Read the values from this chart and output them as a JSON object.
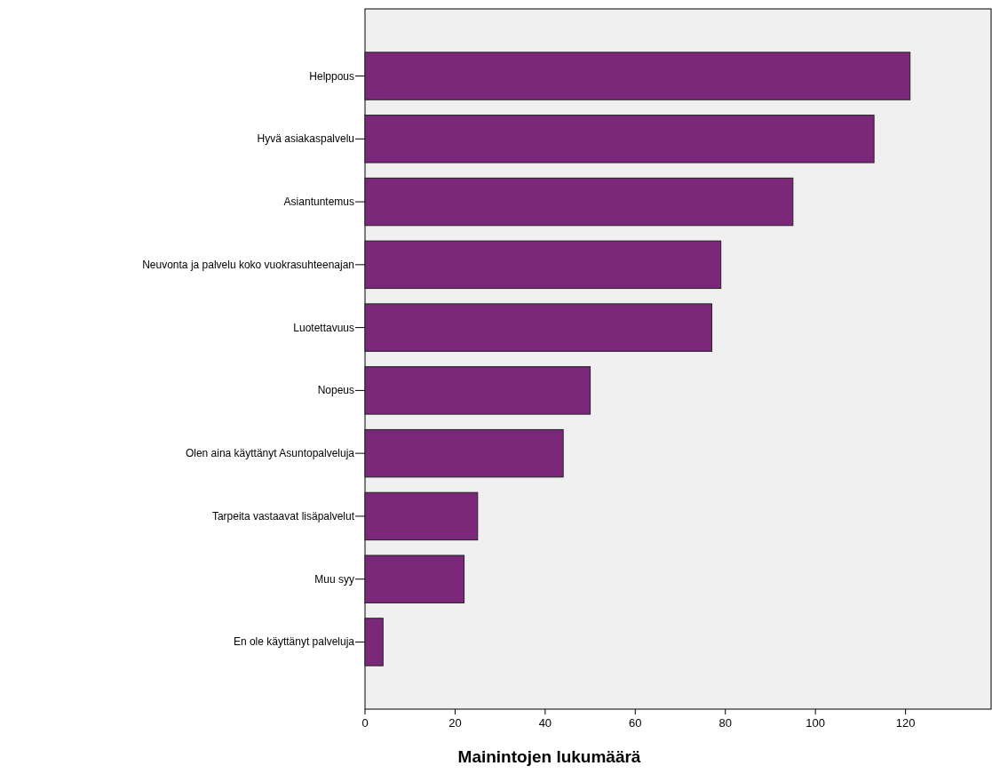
{
  "chart_data": {
    "type": "bar",
    "orientation": "horizontal",
    "xlabel": "Mainintojen lukumäärä",
    "categories": [
      "Helppous",
      "Hyvä asiakaspalvelu",
      "Asiantuntemus",
      "Neuvonta ja palvelu koko vuokrasuhteenajan",
      "Luotettavuus",
      "Nopeus",
      "Olen aina käyttänyt Asuntopalveluja",
      "Tarpeita vastaavat lisäpalvelut",
      "Muu syy",
      "En ole käyttänyt palveluja"
    ],
    "values": [
      121,
      113,
      95,
      79,
      77,
      50,
      44,
      25,
      22,
      4
    ],
    "color": "#7b287a",
    "xlim": [
      0,
      139
    ],
    "xticks": [
      0,
      20,
      40,
      60,
      80,
      100,
      120
    ],
    "grid": false
  }
}
